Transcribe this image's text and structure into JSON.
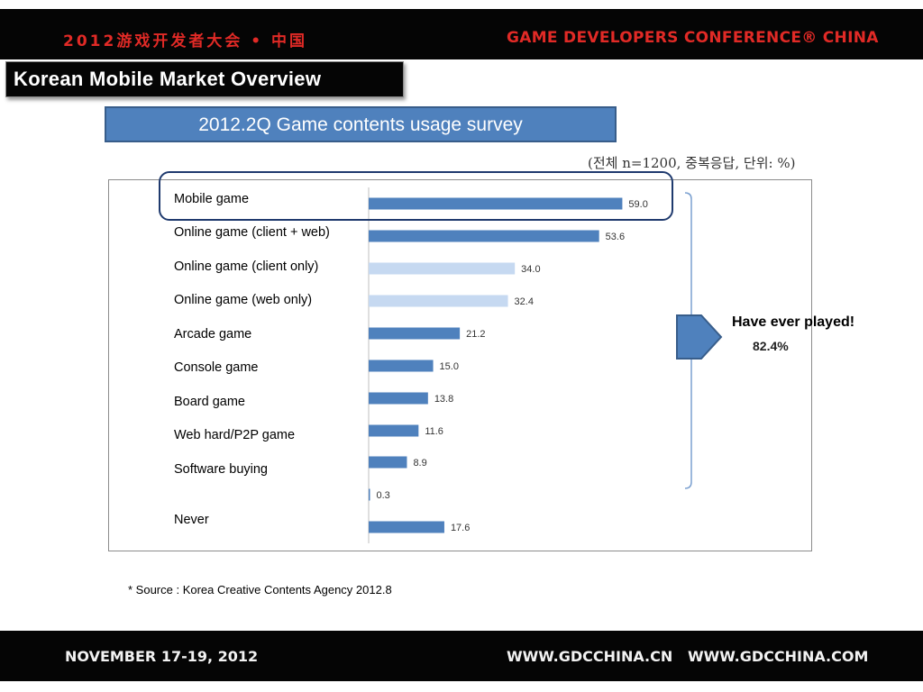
{
  "header": {
    "left_text": "2012游戏开发者大会 • 中国",
    "right_text": "GAME DEVELOPERS CONFERENCE® CHINA"
  },
  "slide_title": "Korean Mobile Market Overview",
  "survey_title": "2012.2Q Game contents usage survey",
  "note": "(전체 n=1200, 중복응답, 단위: %)",
  "callout": {
    "text": "Have ever played!",
    "value": "82.4%"
  },
  "source": "* Source : Korea Creative Contents Agency 2012.8",
  "footer": {
    "date": "NOVEMBER 17-19, 2012",
    "url1": "WWW.GDCCHINA.CN",
    "url2": "WWW.GDCCHINA.COM"
  },
  "colors": {
    "bar_dark": "#4f81bd",
    "bar_light": "#c6d9f1",
    "band": "#050505",
    "accent_red": "#e12a26"
  },
  "chart_data": {
    "type": "bar",
    "orientation": "horizontal",
    "categories": [
      "Mobile game",
      "Online game (client + web)",
      "Online game (client only)",
      "Online game (web only)",
      "Arcade game",
      "Console game",
      "Board game",
      "Web hard/P2P game",
      "Software buying",
      "",
      "Never"
    ],
    "values": [
      59.0,
      53.6,
      34.0,
      32.4,
      21.2,
      15.0,
      13.8,
      11.6,
      8.9,
      0.3,
      17.6
    ],
    "value_labels": [
      "59.0",
      "53.6",
      "34.0",
      "32.4",
      "21.2",
      "15.0",
      "13.8",
      "11.6",
      "8.9",
      "0.3",
      "17.6"
    ],
    "bar_shade": [
      "dark",
      "dark",
      "light",
      "light",
      "dark",
      "dark",
      "dark",
      "dark",
      "dark",
      "dark",
      "dark"
    ],
    "xlim": [
      0,
      100
    ],
    "grid": false,
    "legend": "none"
  }
}
